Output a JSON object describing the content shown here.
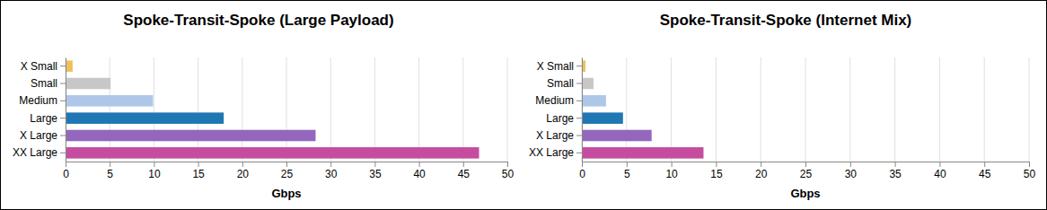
{
  "chart_data": [
    {
      "type": "bar",
      "title": "Spoke-Transit-Spoke (Large Payload)",
      "orientation": "horizontal",
      "categories": [
        "X Small",
        "Small",
        "Medium",
        "Large",
        "X Large",
        "XX Large"
      ],
      "values": [
        0.8,
        5.1,
        9.9,
        17.9,
        28.3,
        46.8
      ],
      "colors": [
        "#f0c05a",
        "#c7c7c7",
        "#aec7e8",
        "#1f77b4",
        "#9467bd",
        "#c54c9f"
      ],
      "x_label": "Gbps",
      "xlim": [
        0,
        50
      ],
      "xticks": [
        0,
        5,
        10,
        15,
        20,
        25,
        30,
        35,
        40,
        45,
        50
      ],
      "grid": true
    },
    {
      "type": "bar",
      "title": "Spoke-Transit-Spoke (Internet Mix)",
      "orientation": "horizontal",
      "categories": [
        "X Small",
        "Small",
        "Medium",
        "Large",
        "X Large",
        "XX Large"
      ],
      "values": [
        0.4,
        1.3,
        2.7,
        4.6,
        7.8,
        13.6
      ],
      "colors": [
        "#f0c05a",
        "#c7c7c7",
        "#aec7e8",
        "#1f77b4",
        "#9467bd",
        "#c54c9f"
      ],
      "x_label": "Gbps",
      "xlim": [
        0,
        50
      ],
      "xticks": [
        0,
        5,
        10,
        15,
        20,
        25,
        30,
        35,
        40,
        45,
        50
      ],
      "grid": true
    }
  ]
}
